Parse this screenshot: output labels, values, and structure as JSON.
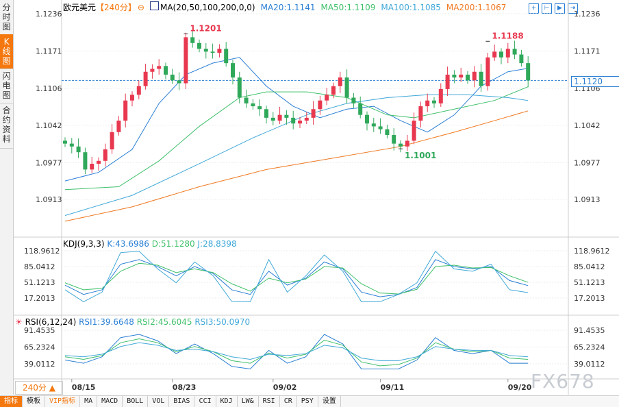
{
  "sidebar": {
    "tabs": [
      "分时图",
      "K线图",
      "闪电图",
      "合约资料"
    ],
    "active": 1
  },
  "header": {
    "symbol": "欧元美元",
    "period": "【240分】",
    "ma_label": "MA(20,50,100,200,0,0)",
    "ma20": "MA20:1.1141",
    "ma50": "MA50:1.1109",
    "ma100": "MA100:1.1085",
    "ma200": "MA200:1.1067"
  },
  "kdj_header": {
    "label": "KDJ(9,3,3)",
    "k": "K:43.6986",
    "d": "D:51.1280",
    "j": "J:28.8398"
  },
  "rsi_header": {
    "label": "RSI(6,12,24)",
    "r1": "RSI1:39.6648",
    "r2": "RSI2:45.6045",
    "r3": "RSI3:50.0970"
  },
  "period_button": "240分 ▲",
  "watermark": "FX678",
  "current_price": "1.1120",
  "toolbar": [
    "指标",
    "模板",
    "VIP指标",
    "MA",
    "MACD",
    "BOLL",
    "VOL",
    "BIAS",
    "CCI",
    "KDJ",
    "LW&",
    "RSI",
    "CR",
    "PSY",
    "设置"
  ],
  "colors": {
    "up": "#e8384f",
    "down": "#2fa85a",
    "ma20": "#2a7fd4",
    "ma50": "#3fbf6a",
    "ma100": "#40a8d8",
    "ma200": "#f07820",
    "accent": "#f4780e"
  },
  "chart_data": {
    "type": "candlestick",
    "price_ticks": [
      "1.1236",
      "1.1171",
      "1.1106",
      "1.1042",
      "1.0977",
      "1.0913"
    ],
    "ylim": [
      1.0913,
      1.1236
    ],
    "x_ticks": [
      {
        "label": "08/15",
        "index": 1
      },
      {
        "label": "08/23",
        "index": 16
      },
      {
        "label": "09/02",
        "index": 31
      },
      {
        "label": "09/11",
        "index": 47
      },
      {
        "label": "09/20",
        "index": 66
      }
    ],
    "close": [
      1.101,
      1.1005,
      1.0995,
      1.0965,
      1.0975,
      1.098,
      1.1,
      1.103,
      1.105,
      1.1085,
      1.1095,
      1.111,
      1.1135,
      1.114,
      1.1145,
      1.113,
      1.112,
      1.1115,
      1.1195,
      1.1185,
      1.1175,
      1.117,
      1.1168,
      1.1175,
      1.115,
      1.1125,
      1.109,
      1.108,
      1.1075,
      1.107,
      1.1055,
      1.105,
      1.106,
      1.1055,
      1.1045,
      1.105,
      1.1055,
      1.107,
      1.1085,
      1.1095,
      1.111,
      1.1125,
      1.109,
      1.108,
      1.106,
      1.1045,
      1.104,
      1.1035,
      1.1025,
      1.101,
      1.1005,
      1.1015,
      1.105,
      1.1075,
      1.1085,
      1.108,
      1.1105,
      1.113,
      1.1125,
      1.113,
      1.112,
      1.1135,
      1.111,
      1.116,
      1.117,
      1.116,
      1.1175,
      1.1165,
      1.115,
      1.112
    ],
    "annotations": [
      {
        "label": "1.1201",
        "index": 18,
        "value": 1.1201,
        "kind": "high"
      },
      {
        "label": "1.1001",
        "index": 50,
        "value": 1.1001,
        "kind": "low"
      },
      {
        "label": "1.1188",
        "index": 63,
        "value": 1.1188,
        "kind": "high"
      }
    ],
    "ma": {
      "ma20": [
        [
          0,
          1.0945
        ],
        [
          5,
          1.096
        ],
        [
          10,
          1.1
        ],
        [
          14,
          1.108
        ],
        [
          18,
          1.113
        ],
        [
          22,
          1.115
        ],
        [
          26,
          1.116
        ],
        [
          30,
          1.111
        ],
        [
          34,
          1.1075
        ],
        [
          38,
          1.1055
        ],
        [
          42,
          1.107
        ],
        [
          46,
          1.1075
        ],
        [
          50,
          1.105
        ],
        [
          54,
          1.103
        ],
        [
          58,
          1.106
        ],
        [
          62,
          1.111
        ],
        [
          66,
          1.1135
        ],
        [
          69,
          1.1141
        ]
      ],
      "ma50": [
        [
          0,
          1.093
        ],
        [
          8,
          1.0935
        ],
        [
          14,
          1.098
        ],
        [
          20,
          1.104
        ],
        [
          26,
          1.109
        ],
        [
          30,
          1.11
        ],
        [
          36,
          1.11
        ],
        [
          42,
          1.109
        ],
        [
          48,
          1.106
        ],
        [
          52,
          1.1055
        ],
        [
          58,
          1.107
        ],
        [
          64,
          1.1085
        ],
        [
          69,
          1.1109
        ]
      ],
      "ma100": [
        [
          0,
          1.0885
        ],
        [
          10,
          1.092
        ],
        [
          20,
          1.0975
        ],
        [
          28,
          1.102
        ],
        [
          36,
          1.106
        ],
        [
          42,
          1.108
        ],
        [
          48,
          1.109
        ],
        [
          54,
          1.1095
        ],
        [
          60,
          1.1095
        ],
        [
          66,
          1.109
        ],
        [
          69,
          1.1085
        ]
      ],
      "ma200": [
        [
          0,
          1.0875
        ],
        [
          10,
          1.09
        ],
        [
          20,
          1.0935
        ],
        [
          30,
          1.0965
        ],
        [
          40,
          1.0985
        ],
        [
          50,
          1.1005
        ],
        [
          58,
          1.103
        ],
        [
          64,
          1.105
        ],
        [
          69,
          1.1067
        ]
      ]
    },
    "kdj": {
      "ticks": [
        "118.9612",
        "85.0412",
        "51.1213",
        "17.2013"
      ],
      "ylim": [
        17.2013,
        118.9612
      ],
      "k": [
        45,
        25,
        35,
        90,
        100,
        85,
        65,
        85,
        70,
        35,
        25,
        75,
        45,
        60,
        95,
        80,
        30,
        20,
        25,
        40,
        100,
        85,
        80,
        85,
        55,
        44
      ],
      "d": [
        50,
        35,
        38,
        75,
        92,
        88,
        72,
        80,
        72,
        48,
        32,
        60,
        50,
        58,
        85,
        82,
        48,
        28,
        26,
        36,
        85,
        88,
        82,
        83,
        65,
        51
      ],
      "j": [
        35,
        5,
        30,
        115,
        118,
        80,
        50,
        95,
        65,
        10,
        5,
        100,
        30,
        65,
        110,
        75,
        0,
        5,
        25,
        50,
        118,
        80,
        75,
        90,
        35,
        29
      ]
    },
    "rsi": {
      "ticks": [
        "91.4535",
        "65.2324",
        "39.0112"
      ],
      "ylim": [
        39.0112,
        91.4535
      ],
      "rsi1": [
        45,
        40,
        50,
        80,
        85,
        75,
        55,
        70,
        55,
        35,
        30,
        60,
        40,
        50,
        85,
        70,
        30,
        25,
        30,
        45,
        80,
        60,
        55,
        60,
        40,
        40
      ],
      "rsi2": [
        50,
        46,
        52,
        72,
        78,
        72,
        58,
        66,
        58,
        44,
        40,
        56,
        48,
        54,
        76,
        68,
        42,
        36,
        38,
        48,
        72,
        62,
        58,
        60,
        48,
        46
      ],
      "rsi3": [
        52,
        50,
        54,
        66,
        72,
        68,
        60,
        62,
        58,
        50,
        46,
        54,
        52,
        55,
        68,
        64,
        48,
        44,
        44,
        50,
        66,
        62,
        60,
        60,
        52,
        50
      ]
    }
  }
}
